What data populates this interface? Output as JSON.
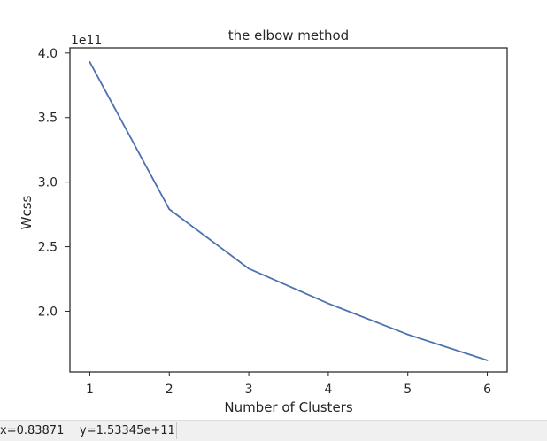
{
  "chart_data": {
    "type": "line",
    "title": "the elbow method",
    "xlabel": "Number of Clusters",
    "ylabel": "Wcss",
    "offset_text": "1e11",
    "x": [
      1,
      2,
      3,
      4,
      5,
      6
    ],
    "y": [
      393000000000.0,
      279000000000.0,
      233000000000.0,
      206000000000.0,
      182000000000.0,
      162000000000.0
    ],
    "xticks": [
      "1",
      "2",
      "3",
      "4",
      "5",
      "6"
    ],
    "yticks": [
      "2.0",
      "2.5",
      "3.0",
      "3.5",
      "4.0"
    ],
    "ytick_values": [
      200000000000.0,
      250000000000.0,
      300000000000.0,
      350000000000.0,
      400000000000.0
    ],
    "xlim": [
      0.75,
      6.25
    ],
    "ylim": [
      153000000000.0,
      404000000000.0
    ],
    "grid": false,
    "line_color": "#4c72b0"
  },
  "status": {
    "x": "x=0.83871",
    "y": "y=1.53345e+11"
  }
}
